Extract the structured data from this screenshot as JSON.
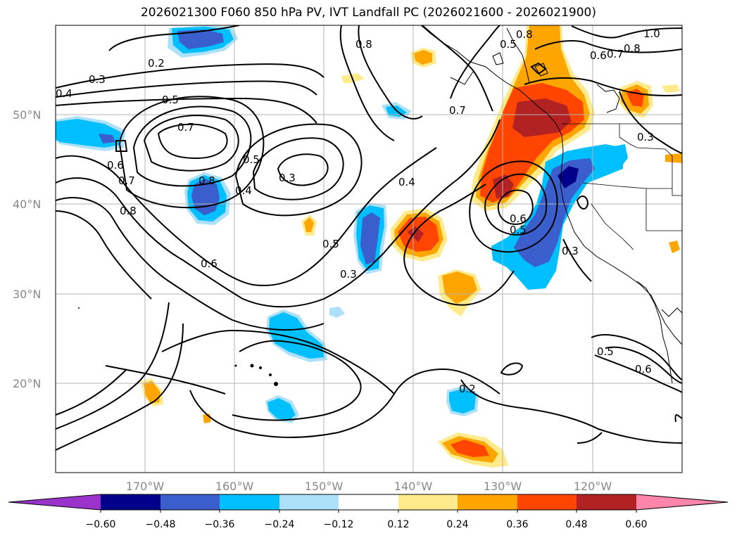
{
  "title": "2026021300 F060 850 hPa PV, IVT Landfall PC (2026021600 - 2026021900)",
  "lat_labels": [
    "50°N",
    "40°N",
    "30°N",
    "20°N"
  ],
  "lon_labels": [
    "170°W",
    "160°W",
    "150°W",
    "140°W",
    "130°W",
    "120°W"
  ],
  "contour_labels": [
    "0.2",
    "0.3",
    "0.4",
    "0.5",
    "0.7",
    "0.6",
    "0.7",
    "0.8",
    "0.8",
    "0.5",
    "0.3",
    "0.4",
    "0.8",
    "0.6",
    "0.5",
    "0.3",
    "0.4",
    "0.7",
    "0.8",
    "0.5",
    "1.0",
    "0.6",
    "0.7",
    "0.8",
    "0.3",
    "0.6",
    "0.5",
    "0.3",
    "0.5",
    "0.6",
    "0.2"
  ],
  "colorbar": {
    "ticks": [
      "−0.60",
      "−0.48",
      "−0.36",
      "−0.24",
      "−0.12",
      "0.12",
      "0.24",
      "0.36",
      "0.48",
      "0.60"
    ],
    "colors": [
      "#9933cc",
      "#00008b",
      "#3a5fcd",
      "#00bfff",
      "#ade1fa",
      "#ffffff",
      "#ffeb8c",
      "#ffa500",
      "#ff4500",
      "#b22222",
      "#ff85aa"
    ]
  }
}
